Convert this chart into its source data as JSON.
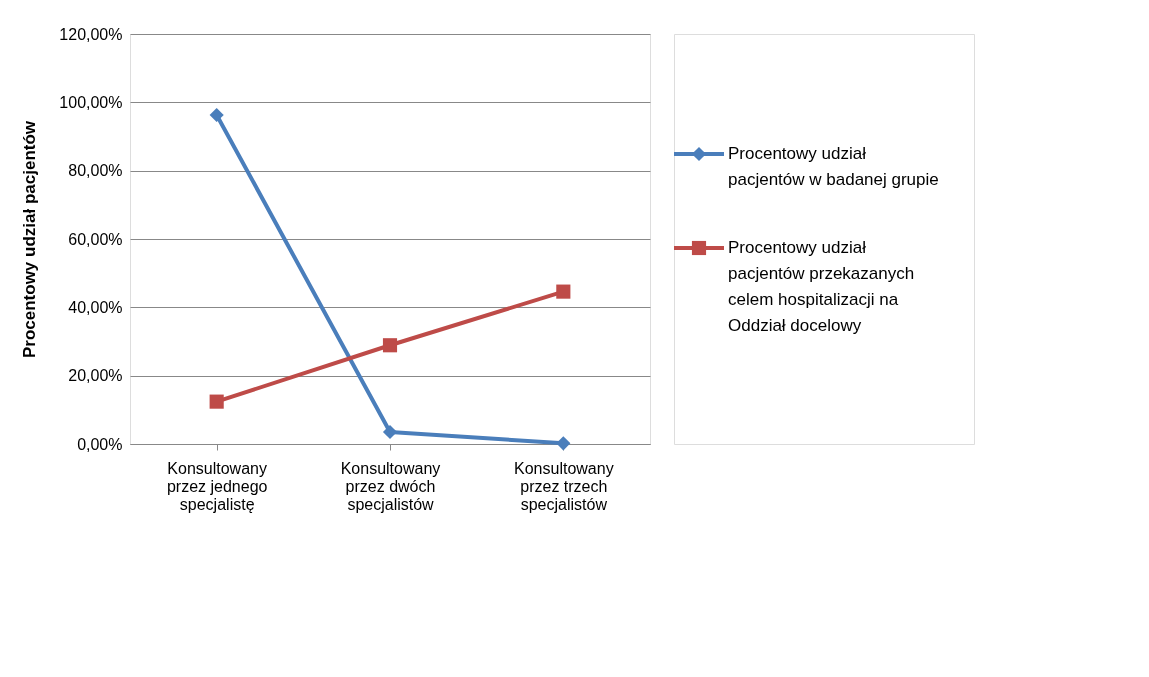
{
  "chart_data": {
    "type": "line",
    "ylabel": "Procentowy udział pacjentów",
    "categories": [
      "Konsultowany przez jednego specjalistę",
      "Konsultowany przez dwóch specjalistów",
      "Konsultowany przez trzech specjalistów"
    ],
    "series": [
      {
        "name": "Procentowy udział pacjentów w badanej grupie",
        "color": "#4a7ebb",
        "marker": "diamond",
        "values": [
          96.3,
          3.5,
          0.2
        ]
      },
      {
        "name": "Procentowy udział pacjentów przekazanych celem hospitalizacji na Oddział docelowy",
        "color": "#be4b48",
        "marker": "square",
        "values": [
          12.4,
          28.9,
          44.6
        ]
      }
    ],
    "ylim": [
      0,
      120
    ],
    "yticks": [
      {
        "value": 0,
        "label": "0,00%"
      },
      {
        "value": 20,
        "label": "20,00%"
      },
      {
        "value": 40,
        "label": "40,00%"
      },
      {
        "value": 60,
        "label": "60,00%"
      },
      {
        "value": 80,
        "label": "80,00%"
      },
      {
        "value": 100,
        "label": "100,00%"
      },
      {
        "value": 120,
        "label": "120,00%"
      }
    ],
    "grid": "y",
    "legend": "right",
    "line_style": "solid"
  }
}
